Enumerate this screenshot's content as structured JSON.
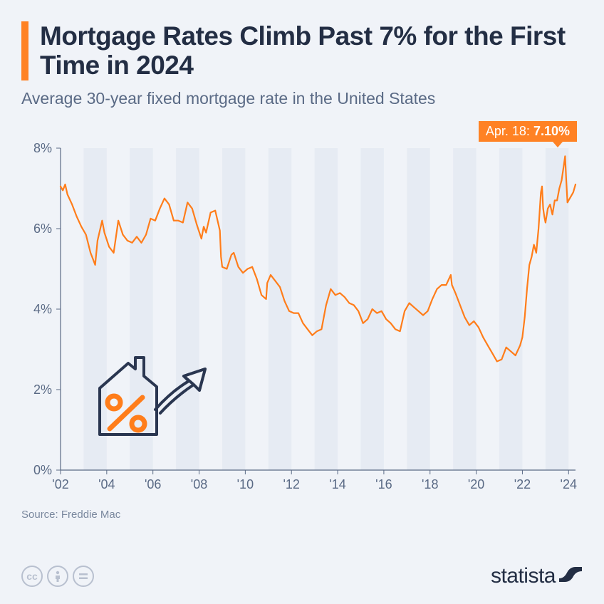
{
  "title": "Mortgage Rates Climb Past 7% for the First Time in 2024",
  "subtitle": "Average 30-year fixed mortgage rate in the United States",
  "callout_date": "Apr. 18:",
  "callout_value": "7.10%",
  "source": "Source: Freddie Mac",
  "brand": "statista",
  "chart": {
    "type": "line",
    "line_color": "#ff7d1a",
    "line_width": 2.2,
    "background": "#f0f3f8",
    "stripe_color": "#e6ebf3",
    "axis_color": "#5a6a85",
    "grid_color": "#c5ccd9",
    "ylim": [
      0,
      8
    ],
    "ytick_step": 2,
    "yticks": [
      "0%",
      "2%",
      "4%",
      "6%",
      "8%"
    ],
    "x_start": 2002,
    "x_end": 2024.3,
    "xticks": [
      2002,
      2004,
      2006,
      2008,
      2010,
      2012,
      2014,
      2016,
      2018,
      2020,
      2022,
      2024
    ],
    "xtick_labels": [
      "'02",
      "'04",
      "'06",
      "'08",
      "'10",
      "'12",
      "'14",
      "'16",
      "'18",
      "'20",
      "'22",
      "'24"
    ],
    "series": [
      [
        2002.0,
        7.05
      ],
      [
        2002.1,
        6.95
      ],
      [
        2002.2,
        7.1
      ],
      [
        2002.3,
        6.85
      ],
      [
        2002.5,
        6.6
      ],
      [
        2002.7,
        6.3
      ],
      [
        2002.9,
        6.05
      ],
      [
        2003.1,
        5.85
      ],
      [
        2003.3,
        5.4
      ],
      [
        2003.4,
        5.25
      ],
      [
        2003.5,
        5.1
      ],
      [
        2003.6,
        5.7
      ],
      [
        2003.8,
        6.2
      ],
      [
        2003.9,
        5.9
      ],
      [
        2004.1,
        5.55
      ],
      [
        2004.3,
        5.4
      ],
      [
        2004.5,
        6.2
      ],
      [
        2004.7,
        5.85
      ],
      [
        2004.9,
        5.7
      ],
      [
        2005.1,
        5.65
      ],
      [
        2005.3,
        5.8
      ],
      [
        2005.5,
        5.65
      ],
      [
        2005.7,
        5.85
      ],
      [
        2005.9,
        6.25
      ],
      [
        2006.1,
        6.2
      ],
      [
        2006.3,
        6.5
      ],
      [
        2006.5,
        6.75
      ],
      [
        2006.7,
        6.6
      ],
      [
        2006.9,
        6.2
      ],
      [
        2007.1,
        6.2
      ],
      [
        2007.3,
        6.15
      ],
      [
        2007.5,
        6.65
      ],
      [
        2007.7,
        6.5
      ],
      [
        2007.9,
        6.1
      ],
      [
        2008.1,
        5.75
      ],
      [
        2008.2,
        6.05
      ],
      [
        2008.3,
        5.9
      ],
      [
        2008.5,
        6.4
      ],
      [
        2008.7,
        6.45
      ],
      [
        2008.9,
        5.95
      ],
      [
        2008.95,
        5.3
      ],
      [
        2009.0,
        5.05
      ],
      [
        2009.2,
        5.0
      ],
      [
        2009.4,
        5.35
      ],
      [
        2009.5,
        5.4
      ],
      [
        2009.7,
        5.05
      ],
      [
        2009.9,
        4.9
      ],
      [
        2010.1,
        5.0
      ],
      [
        2010.3,
        5.05
      ],
      [
        2010.5,
        4.75
      ],
      [
        2010.7,
        4.35
      ],
      [
        2010.9,
        4.25
      ],
      [
        2010.95,
        4.65
      ],
      [
        2011.1,
        4.85
      ],
      [
        2011.3,
        4.7
      ],
      [
        2011.5,
        4.55
      ],
      [
        2011.7,
        4.2
      ],
      [
        2011.9,
        3.95
      ],
      [
        2012.1,
        3.9
      ],
      [
        2012.3,
        3.9
      ],
      [
        2012.5,
        3.65
      ],
      [
        2012.7,
        3.5
      ],
      [
        2012.9,
        3.35
      ],
      [
        2013.1,
        3.45
      ],
      [
        2013.3,
        3.5
      ],
      [
        2013.5,
        4.1
      ],
      [
        2013.7,
        4.5
      ],
      [
        2013.9,
        4.35
      ],
      [
        2014.1,
        4.4
      ],
      [
        2014.3,
        4.3
      ],
      [
        2014.5,
        4.15
      ],
      [
        2014.7,
        4.1
      ],
      [
        2014.9,
        3.95
      ],
      [
        2015.1,
        3.65
      ],
      [
        2015.3,
        3.75
      ],
      [
        2015.5,
        4.0
      ],
      [
        2015.7,
        3.9
      ],
      [
        2015.9,
        3.95
      ],
      [
        2016.1,
        3.75
      ],
      [
        2016.3,
        3.65
      ],
      [
        2016.5,
        3.5
      ],
      [
        2016.7,
        3.45
      ],
      [
        2016.9,
        3.95
      ],
      [
        2017.1,
        4.15
      ],
      [
        2017.3,
        4.05
      ],
      [
        2017.5,
        3.95
      ],
      [
        2017.7,
        3.85
      ],
      [
        2017.9,
        3.95
      ],
      [
        2018.1,
        4.25
      ],
      [
        2018.3,
        4.5
      ],
      [
        2018.5,
        4.6
      ],
      [
        2018.7,
        4.6
      ],
      [
        2018.9,
        4.85
      ],
      [
        2018.95,
        4.6
      ],
      [
        2019.1,
        4.4
      ],
      [
        2019.3,
        4.1
      ],
      [
        2019.5,
        3.8
      ],
      [
        2019.7,
        3.6
      ],
      [
        2019.9,
        3.7
      ],
      [
        2020.1,
        3.55
      ],
      [
        2020.3,
        3.3
      ],
      [
        2020.5,
        3.1
      ],
      [
        2020.7,
        2.9
      ],
      [
        2020.9,
        2.7
      ],
      [
        2021.1,
        2.75
      ],
      [
        2021.3,
        3.05
      ],
      [
        2021.5,
        2.95
      ],
      [
        2021.7,
        2.85
      ],
      [
        2021.9,
        3.1
      ],
      [
        2022.0,
        3.3
      ],
      [
        2022.1,
        3.8
      ],
      [
        2022.2,
        4.5
      ],
      [
        2022.3,
        5.1
      ],
      [
        2022.4,
        5.3
      ],
      [
        2022.5,
        5.6
      ],
      [
        2022.6,
        5.4
      ],
      [
        2022.7,
        6.0
      ],
      [
        2022.8,
        6.9
      ],
      [
        2022.85,
        7.05
      ],
      [
        2022.9,
        6.5
      ],
      [
        2022.95,
        6.3
      ],
      [
        2023.0,
        6.15
      ],
      [
        2023.1,
        6.5
      ],
      [
        2023.2,
        6.6
      ],
      [
        2023.3,
        6.35
      ],
      [
        2023.4,
        6.7
      ],
      [
        2023.5,
        6.7
      ],
      [
        2023.6,
        7.0
      ],
      [
        2023.7,
        7.2
      ],
      [
        2023.8,
        7.6
      ],
      [
        2023.85,
        7.8
      ],
      [
        2023.9,
        7.2
      ],
      [
        2023.95,
        6.65
      ],
      [
        2024.0,
        6.7
      ],
      [
        2024.1,
        6.8
      ],
      [
        2024.2,
        6.9
      ],
      [
        2024.3,
        7.1
      ]
    ]
  }
}
